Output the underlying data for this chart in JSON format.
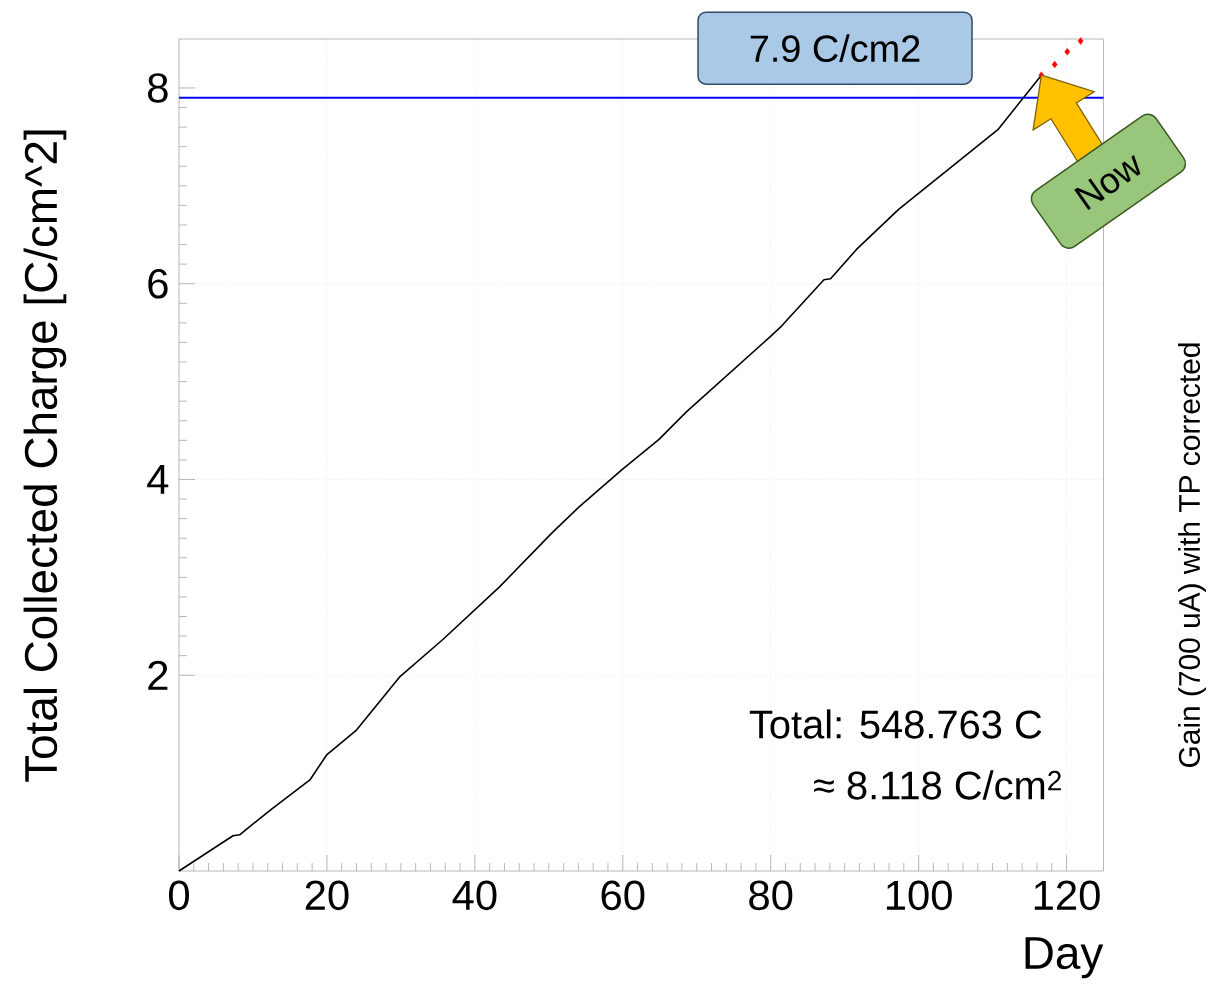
{
  "chart_data": {
    "type": "line",
    "xlabel": "Day",
    "ylabel": "Total Collected Charge [C/cm^2]",
    "xlim": [
      0,
      125
    ],
    "ylim": [
      0,
      8.5
    ],
    "xticks": [
      0,
      20,
      40,
      60,
      80,
      100,
      120
    ],
    "yticks": [
      2,
      4,
      6,
      8
    ],
    "grid": true,
    "series": [
      {
        "color": "#000000",
        "x": [
          0,
          7.3,
          8.2,
          12.3,
          17.7,
          20,
          24.0,
          29.8,
          35.6,
          43.3,
          50.5,
          54.1,
          59.9,
          64.9,
          68.6,
          79.8,
          81.5,
          87.2,
          88.1,
          91.6,
          97.3,
          110.8,
          116.6
        ],
        "values": [
          0,
          0.36,
          0.37,
          0.62,
          0.93,
          1.19,
          1.44,
          1.98,
          2.36,
          2.9,
          3.46,
          3.72,
          4.1,
          4.41,
          4.69,
          5.45,
          5.57,
          6.04,
          6.05,
          6.35,
          6.76,
          7.58,
          8.13
        ]
      },
      {
        "type": "scatter",
        "color": "#ff0000",
        "marker": "diamond",
        "x": [
          116.6,
          118.4,
          120.1,
          121.9
        ],
        "values": [
          8.13,
          8.24,
          8.37,
          8.48
        ]
      }
    ],
    "ref_lines": [
      {
        "axis": "y",
        "value": 7.9,
        "label": "7.9 C/cm2",
        "color": "#0000ff"
      }
    ],
    "annotations": [
      "Total: 548.763 C",
      "≈ 8.118 C/cm$^{2}$",
      "Gain (700 uA) with TP corrected",
      {
        "text": "Now",
        "x": 116.6,
        "y": 8.13
      }
    ]
  }
}
